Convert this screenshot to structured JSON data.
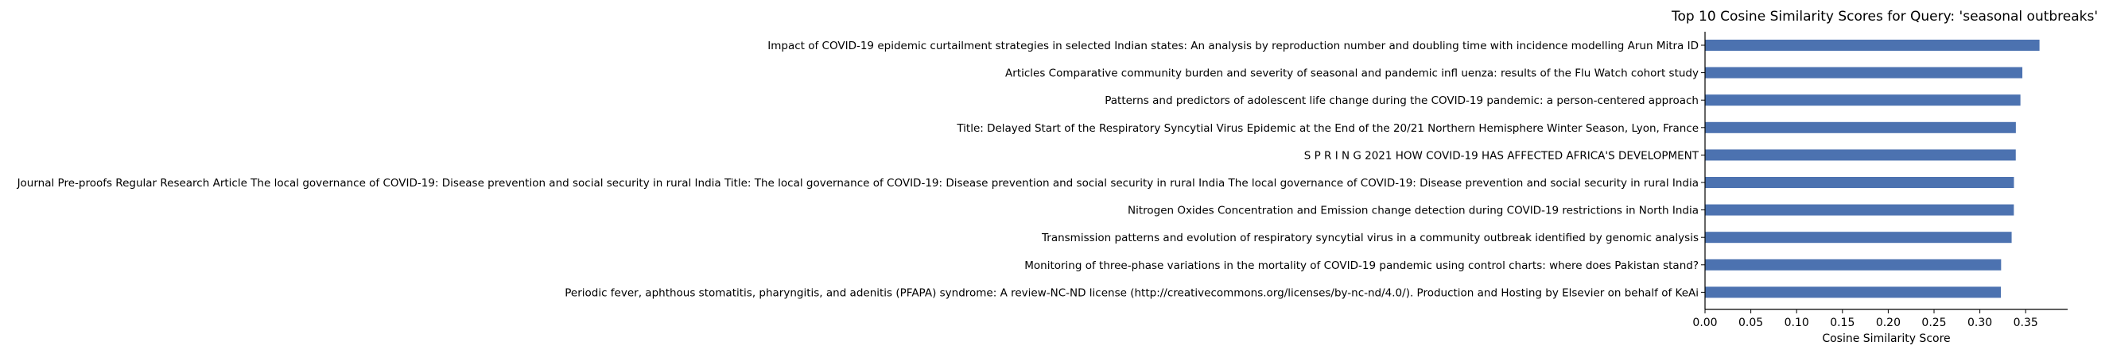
{
  "chart_data": {
    "type": "bar",
    "orientation": "horizontal",
    "title": "Top 10 Cosine Similarity Scores for Query: 'seasonal outbreaks'",
    "xlabel": "Cosine Similarity Score",
    "ylabel": "",
    "xlim": [
      0,
      0.365
    ],
    "xticks": [
      "0.00",
      "0.05",
      "0.10",
      "0.15",
      "0.20",
      "0.25",
      "0.30",
      "0.35"
    ],
    "grid": false,
    "legend": "none",
    "bar_color": "#4c72b0",
    "categories": [
      "Impact of COVID-19 epidemic curtailment strategies in selected Indian states: An analysis by reproduction number and doubling time with incidence modelling Arun Mitra ID",
      "Articles Comparative community burden and severity of seasonal and pandemic infl uenza: results of the Flu Watch cohort study",
      "Patterns and predictors of adolescent life change during the COVID-19 pandemic: a person-centered approach",
      "Title: Delayed Start of the Respiratory Syncytial Virus Epidemic at the End of the 20/21 Northern Hemisphere Winter Season, Lyon, France",
      "S P R I N G 2021 HOW COVID-19 HAS AFFECTED AFRICA'S DEVELOPMENT",
      "Journal Pre-proofs Regular Research Article The local governance of COVID-19: Disease prevention and social security in rural India Title: The local governance of COVID-19: Disease prevention and social security in rural India The local governance of COVID-19: Disease prevention and social security in rural India",
      "Nitrogen Oxides Concentration and Emission change detection during COVID-19 restrictions in North India",
      "Transmission patterns and evolution of respiratory syncytial virus in a community outbreak identified by genomic analysis",
      "Monitoring of three-phase variations in the mortality of COVID-19 pandemic using control charts: where does Pakistan stand?",
      "Periodic fever, aphthous stomatitis, pharyngitis, and adenitis (PFAPA) syndrome: A review-NC-ND license (http://creativecommons.org/licenses/by-nc-nd/4.0/). Production and Hosting by Elsevier on behalf of KeAi"
    ],
    "values": [
      0.3651,
      0.3464,
      0.3443,
      0.3393,
      0.3392,
      0.3372,
      0.3371,
      0.3347,
      0.3232,
      0.323
    ]
  }
}
